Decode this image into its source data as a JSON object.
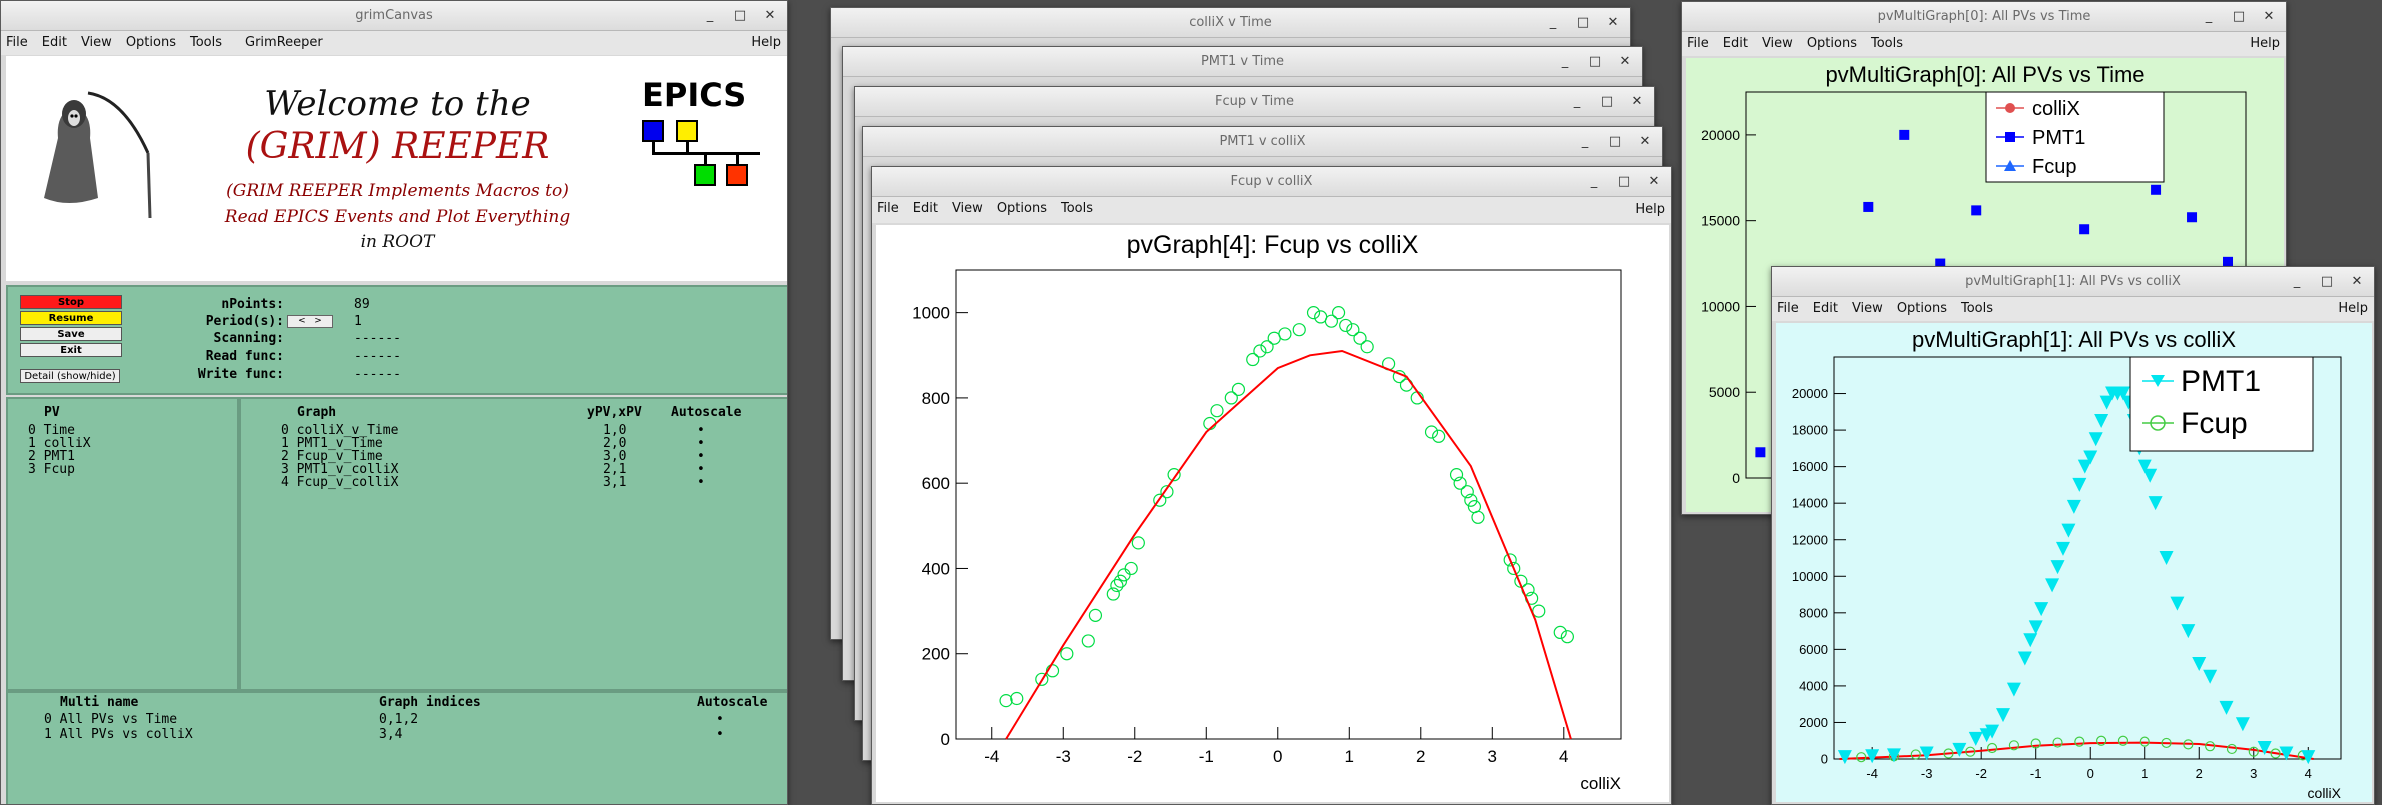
{
  "grim": {
    "title": "grimCanvas",
    "menu": [
      "File",
      "Edit",
      "View",
      "Options",
      "Tools",
      "GrimReeper"
    ],
    "help": "Help",
    "welcome1": "Welcome to the",
    "welcome2": "(GRIM) REEPER",
    "tag1": "(GRIM REEPER Implements Macros to)",
    "tag2": "Read EPICS Events and Plot Everything",
    "tag3": "in ROOT",
    "epics": "EPICS",
    "buttons": {
      "stop": "Stop",
      "resume": "Resume",
      "save": "Save",
      "exit": "Exit",
      "detail": "Detail (show/hide)"
    },
    "status": {
      "npoints_label": "nPoints:",
      "npoints": "89",
      "period_label": "Period(s):",
      "period": "1",
      "scanning_label": "Scanning:",
      "scanning": "------",
      "read_label": "Read func:",
      "read": "------",
      "write_label": "Write func:",
      "write": "------"
    },
    "pv_header": "PV",
    "pvs": [
      "0 Time",
      "1 colliX",
      "2 PMT1",
      "3 Fcup"
    ],
    "graph_header": "Graph",
    "ypv_header": "yPV,xPV",
    "auto_header": "Autoscale",
    "graphs": [
      {
        "name": "0 colliX_v_Time",
        "pv": "1,0",
        "auto": "•"
      },
      {
        "name": "1 PMT1_v_Time",
        "pv": "2,0",
        "auto": "•"
      },
      {
        "name": "2 Fcup_v_Time",
        "pv": "3,0",
        "auto": "•"
      },
      {
        "name": "3 PMT1_v_colliX",
        "pv": "2,1",
        "auto": "•"
      },
      {
        "name": "4 Fcup_v_colliX",
        "pv": "3,1",
        "auto": "•"
      }
    ],
    "multi_header": "Multi name",
    "indices_header": "Graph indices",
    "multi_auto_header": "Autoscale",
    "multis": [
      {
        "name": "0 All PVs vs Time",
        "idx": "0,1,2",
        "auto": "•"
      },
      {
        "name": "1 All PVs vs colliX",
        "idx": "3,4",
        "auto": "•"
      }
    ]
  },
  "stack": {
    "titles": [
      "colliX v Time",
      "PMT1 v Time",
      "Fcup v Time",
      "PMT1 v colliX"
    ]
  },
  "fcup": {
    "title": "Fcup v colliX",
    "menu": [
      "File",
      "Edit",
      "View",
      "Options",
      "Tools"
    ],
    "help": "Help",
    "plot_title": "pvGraph[4]: Fcup vs colliX",
    "xlabel": "colliX"
  },
  "mg0": {
    "title": "pvMultiGraph[0]: All PVs vs Time",
    "menu": [
      "File",
      "Edit",
      "View",
      "Options",
      "Tools"
    ],
    "help": "Help",
    "plot_title": "pvMultiGraph[0]: All PVs vs Time",
    "legend": [
      "colliX",
      "PMT1",
      "Fcup"
    ]
  },
  "mg1": {
    "title": "pvMultiGraph[1]: All PVs vs colliX",
    "menu": [
      "File",
      "Edit",
      "View",
      "Options",
      "Tools"
    ],
    "help": "Help",
    "plot_title": "pvMultiGraph[1]: All PVs vs colliX",
    "legend": [
      "PMT1",
      "Fcup"
    ],
    "xlabel": "colliX"
  },
  "colors": {
    "panel": "#86c2a2",
    "fcup": "#00dd44",
    "fit": "#ff0000",
    "pmt1_blue": "#0000ff",
    "pmt1_cyan": "#00e5ee",
    "collix": "#e05050",
    "mg1_bg": "#d9fafa",
    "mg0_bg": "#d7f7d0"
  },
  "chart_data": [
    {
      "type": "scatter",
      "title": "pvGraph[4]: Fcup vs colliX",
      "xlabel": "colliX",
      "ylabel": "",
      "xlim": [
        -4.5,
        4.8
      ],
      "ylim": [
        0,
        1100
      ],
      "xticks": [
        -4,
        -3,
        -2,
        -1,
        0,
        1,
        2,
        3,
        4
      ],
      "yticks": [
        0,
        200,
        400,
        600,
        800,
        1000
      ],
      "series": [
        {
          "name": "Fcup",
          "marker": "open-circle",
          "x": [
            -3.8,
            -3.65,
            -3.3,
            -3.15,
            -2.95,
            -2.65,
            -2.55,
            -2.3,
            -2.25,
            -2.2,
            -2.15,
            -2.05,
            -1.95,
            -1.65,
            -1.55,
            -1.45,
            -0.95,
            -0.85,
            -0.65,
            -0.55,
            -0.35,
            -0.25,
            -0.15,
            -0.05,
            0.1,
            0.3,
            0.5,
            0.6,
            0.75,
            0.85,
            0.95,
            1.05,
            1.15,
            1.25,
            1.55,
            1.7,
            1.8,
            1.95,
            2.15,
            2.25,
            2.5,
            2.55,
            2.65,
            2.7,
            2.75,
            2.8,
            3.25,
            3.3,
            3.4,
            3.5,
            3.55,
            3.65,
            3.95,
            4.05
          ],
          "y": [
            90,
            95,
            140,
            160,
            200,
            230,
            290,
            340,
            360,
            370,
            385,
            400,
            460,
            560,
            580,
            620,
            740,
            770,
            800,
            820,
            890,
            910,
            920,
            940,
            950,
            960,
            1000,
            990,
            980,
            1000,
            970,
            960,
            940,
            920,
            880,
            850,
            830,
            800,
            720,
            710,
            620,
            600,
            580,
            560,
            545,
            520,
            420,
            400,
            370,
            350,
            330,
            300,
            250,
            240
          ]
        },
        {
          "name": "fit",
          "marker": "line",
          "x": [
            -3.8,
            -3.0,
            -2.0,
            -1.0,
            0.0,
            0.45,
            0.9,
            1.8,
            2.7,
            3.6,
            4.1
          ],
          "y": [
            0,
            220,
            480,
            720,
            870,
            900,
            910,
            850,
            640,
            280,
            0
          ]
        }
      ]
    },
    {
      "type": "scatter",
      "title": "pvMultiGraph[1]: All PVs vs colliX",
      "xlabel": "colliX",
      "ylabel": "",
      "xlim": [
        -4.7,
        4.6
      ],
      "ylim": [
        0,
        22000
      ],
      "xticks": [
        -4,
        -3,
        -2,
        -1,
        0,
        1,
        2,
        3,
        4
      ],
      "yticks": [
        0,
        2000,
        4000,
        6000,
        8000,
        10000,
        12000,
        14000,
        16000,
        18000,
        20000
      ],
      "series": [
        {
          "name": "PMT1",
          "marker": "triangle-down",
          "x": [
            -4.5,
            -4.0,
            -3.6,
            -3.0,
            -2.4,
            -2.1,
            -1.9,
            -1.8,
            -1.6,
            -1.4,
            -1.2,
            -1.1,
            -1.0,
            -0.9,
            -0.7,
            -0.6,
            -0.5,
            -0.4,
            -0.3,
            -0.2,
            -0.1,
            0.0,
            0.1,
            0.2,
            0.3,
            0.4,
            0.5,
            0.6,
            0.7,
            0.8,
            0.9,
            1.0,
            1.1,
            1.2,
            1.4,
            1.6,
            1.8,
            2.0,
            2.2,
            2.5,
            2.8,
            3.2,
            3.6,
            4.0
          ],
          "y": [
            100,
            150,
            200,
            300,
            500,
            1100,
            1300,
            1500,
            2400,
            3800,
            5500,
            6500,
            7200,
            8200,
            9500,
            10500,
            11500,
            12500,
            13800,
            15000,
            16000,
            16500,
            17500,
            18500,
            19500,
            20000,
            20000,
            20000,
            19500,
            18500,
            17000,
            16000,
            15500,
            14000,
            11000,
            8500,
            7000,
            5200,
            4500,
            2800,
            1900,
            600,
            300,
            100
          ]
        },
        {
          "name": "Fcup",
          "marker": "open-circle",
          "x": [
            -4.2,
            -3.6,
            -3.2,
            -2.6,
            -2.2,
            -1.8,
            -1.4,
            -1.0,
            -0.6,
            -0.2,
            0.2,
            0.6,
            1.0,
            1.4,
            1.8,
            2.2,
            2.6,
            3.0,
            3.4,
            3.9
          ],
          "y": [
            100,
            150,
            250,
            300,
            400,
            600,
            750,
            850,
            900,
            950,
            1000,
            1000,
            950,
            880,
            800,
            700,
            550,
            400,
            300,
            200
          ]
        },
        {
          "name": "fit",
          "marker": "line",
          "x": [
            -4.6,
            -3,
            -2,
            -1,
            0,
            1,
            2,
            3,
            4.1
          ],
          "y": [
            0,
            200,
            450,
            720,
            870,
            900,
            820,
            500,
            0
          ]
        }
      ]
    },
    {
      "type": "scatter",
      "title": "pvMultiGraph[0]: All PVs vs Time",
      "xlabel": "",
      "ylabel": "",
      "ylim": [
        0,
        22500
      ],
      "yticks": [
        0,
        5000,
        10000,
        15000,
        20000
      ],
      "legend": [
        "colliX",
        "PMT1",
        "Fcup"
      ],
      "series": [
        {
          "name": "PMT1",
          "marker": "square",
          "x": [
            1,
            2,
            3,
            4,
            5,
            6,
            7,
            8,
            9,
            10,
            11,
            12,
            13,
            14
          ],
          "y": [
            1500,
            5200,
            6700,
            15800,
            20000,
            12500,
            15600,
            18200,
            18800,
            14500,
            19200,
            16800,
            15200,
            12600
          ]
        }
      ]
    }
  ]
}
